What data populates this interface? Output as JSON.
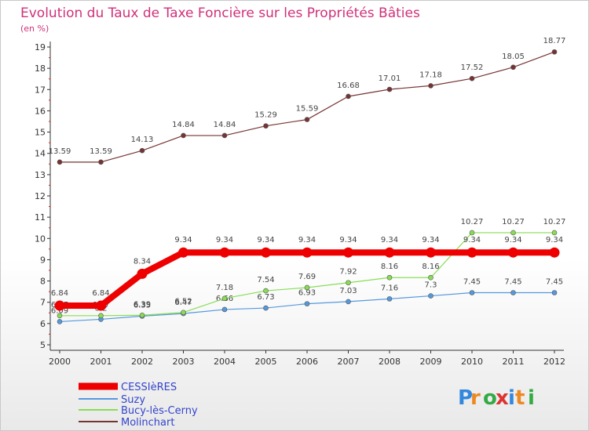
{
  "chart_data": {
    "type": "line",
    "title": "Evolution du Taux de Taxe Foncière sur les Propriétés Bâties",
    "subtitle": "(en %)",
    "xlabel": "",
    "ylabel": "",
    "categories": [
      "2000",
      "2001",
      "2002",
      "2003",
      "2004",
      "2005",
      "2006",
      "2007",
      "2008",
      "2009",
      "2010",
      "2011",
      "2012"
    ],
    "ylim": [
      5,
      19
    ],
    "yticks": [
      5,
      6,
      7,
      8,
      9,
      10,
      11,
      12,
      13,
      14,
      15,
      16,
      17,
      18,
      19
    ],
    "legend_position": "bottom-left",
    "series": [
      {
        "name": "CESSIèRES",
        "color": "#ee0000",
        "values": [
          6.84,
          6.84,
          8.34,
          9.34,
          9.34,
          9.34,
          9.34,
          9.34,
          9.34,
          9.34,
          9.34,
          9.34,
          9.34
        ],
        "labels": [
          "6.84",
          "6.84",
          "8.34",
          "9.34",
          "9.34",
          "9.34",
          "9.34",
          "9.34",
          "9.34",
          "9.34",
          "9.34",
          "9.34",
          "9.34"
        ]
      },
      {
        "name": "Suzy",
        "color": "#5599dd",
        "values": [
          6.09,
          6.2,
          6.35,
          6.47,
          6.66,
          6.73,
          6.93,
          7.03,
          7.16,
          7.3,
          7.45,
          7.45,
          7.45
        ],
        "labels": [
          "6.09",
          "6.2",
          "6.35",
          "6.47",
          "6.66",
          "6.73",
          "6.93",
          "7.03",
          "7.16",
          "7.3",
          "7.45",
          "7.45",
          "7.45"
        ]
      },
      {
        "name": "Bucy-lès-Cerny",
        "color": "#88dd55",
        "values": [
          6.37,
          6.37,
          6.39,
          6.52,
          7.18,
          7.54,
          7.69,
          7.92,
          8.16,
          8.16,
          10.27,
          10.27,
          10.27
        ],
        "labels": [
          "6.37",
          "6.37",
          "6.39",
          "6.52",
          "7.18",
          "7.54",
          "7.69",
          "7.92",
          "8.16",
          "8.16",
          "10.27",
          "10.27",
          "10.27"
        ]
      },
      {
        "name": "Molinchart",
        "color": "#773333",
        "values": [
          13.59,
          13.59,
          14.13,
          14.84,
          14.84,
          15.29,
          15.59,
          16.68,
          17.01,
          17.18,
          17.52,
          18.05,
          18.77
        ],
        "labels": [
          "13.59",
          "13.59",
          "14.13",
          "14.84",
          "14.84",
          "15.29",
          "15.59",
          "16.68",
          "17.01",
          "17.18",
          "17.52",
          "18.05",
          "18.77"
        ]
      }
    ]
  },
  "branding": {
    "logo_text": "Proxiti"
  }
}
